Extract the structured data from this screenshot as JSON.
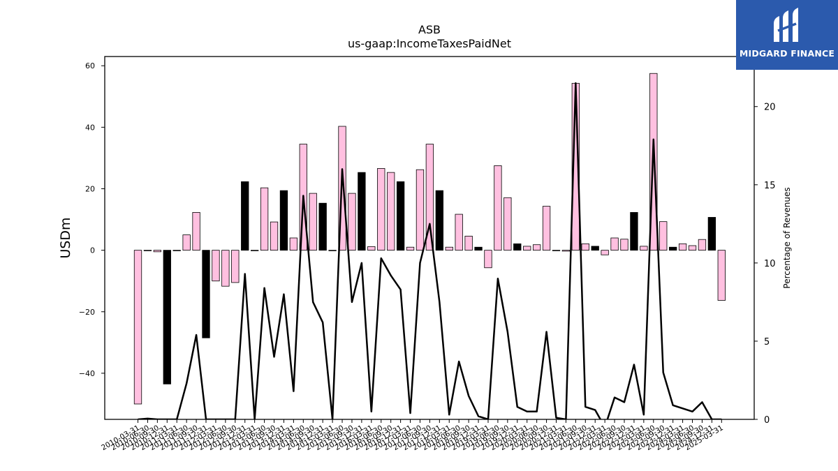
{
  "chart_data": {
    "type": "bar",
    "title": "ASB",
    "subtitle": "us-gaap:IncomeTaxesPaidNet",
    "ylabel": "USDm",
    "y2label": "Percentage of Revenues",
    "ylim": [
      -55,
      63
    ],
    "y2lim": [
      0,
      23.2
    ],
    "yticks": [
      -40,
      -20,
      0,
      20,
      40,
      60
    ],
    "y2ticks": [
      0,
      5,
      10,
      15,
      20
    ],
    "xtick_labels": [
      "2010-03-31",
      "2010-06-30",
      "2010-09-30",
      "2010-12-31",
      "2011-03-31",
      "2011-06-30",
      "2011-09-30",
      "2011-12-31",
      "2012-03-31",
      "2012-06-30",
      "2012-09-30",
      "2012-12-31",
      "2013-03-31",
      "2013-06-30",
      "2013-09-30",
      "2013-12-31",
      "2014-03-31",
      "2014-06-30",
      "2014-09-30",
      "2014-12-31",
      "2015-03-31",
      "2015-06-30",
      "2015-09-30",
      "2015-12-31",
      "2016-03-31",
      "2016-06-30",
      "2016-09-30",
      "2016-12-31",
      "2017-03-31",
      "2017-06-30",
      "2017-09-30",
      "2017-12-31",
      "2018-03-31",
      "2018-06-30",
      "2018-09-30",
      "2018-12-31",
      "2019-03-31",
      "2019-06-30",
      "2019-09-30",
      "2019-12-31",
      "2020-03-31",
      "2020-06-30",
      "2020-09-30",
      "2020-12-31",
      "2021-03-31",
      "2021-06-30",
      "2021-09-30",
      "2021-12-31",
      "2022-03-31",
      "2022-06-30",
      "2022-09-30",
      "2022-12-31",
      "2023-03-31",
      "2023-06-30",
      "2023-09-30",
      "2023-12-31",
      "2024-03-31",
      "2024-06-30",
      "2024-09-30",
      "2024-12-31",
      "2025-03-31"
    ],
    "series": [
      {
        "kind": "bar",
        "values": [
          -50,
          0,
          -0.5,
          -43.5,
          0,
          5,
          12.3,
          -28.5,
          -10,
          -11.7,
          -10.5,
          22.3,
          0,
          20.3,
          9.2,
          19.4,
          4,
          34.5,
          18.5,
          15.3,
          0,
          40.3,
          18.5,
          25.3,
          1.2,
          26.6,
          25.3,
          22.3,
          1,
          26.2,
          34.5,
          19.4,
          1,
          11.7,
          4.6,
          1,
          -5.7,
          27.5,
          17.1,
          2.1,
          1.3,
          1.8,
          14.3,
          0,
          -0.3,
          54.3,
          2.1,
          1.3,
          -1.5,
          4,
          3.6,
          12.3,
          1.3,
          57.5,
          9.3,
          1,
          2.1,
          1.5,
          3.5,
          10.7,
          -16.3
        ],
        "colors": [
          "#ffc0e0",
          "#ffc0e0",
          "#ffc0e0",
          "#000000",
          "#ffc0e0",
          "#ffc0e0",
          "#ffc0e0",
          "#000000",
          "#ffc0e0",
          "#ffc0e0",
          "#ffc0e0",
          "#000000",
          "#ffc0e0",
          "#ffc0e0",
          "#ffc0e0",
          "#000000",
          "#ffc0e0",
          "#ffc0e0",
          "#ffc0e0",
          "#000000",
          "#ffc0e0",
          "#ffc0e0",
          "#ffc0e0",
          "#000000",
          "#ffc0e0",
          "#ffc0e0",
          "#ffc0e0",
          "#000000",
          "#ffc0e0",
          "#ffc0e0",
          "#ffc0e0",
          "#000000",
          "#ffc0e0",
          "#ffc0e0",
          "#ffc0e0",
          "#000000",
          "#ffc0e0",
          "#ffc0e0",
          "#ffc0e0",
          "#000000",
          "#ffc0e0",
          "#ffc0e0",
          "#ffc0e0",
          "#000000",
          "#ffc0e0",
          "#ffc0e0",
          "#ffc0e0",
          "#000000",
          "#ffc0e0",
          "#ffc0e0",
          "#ffc0e0",
          "#000000",
          "#ffc0e0",
          "#ffc0e0",
          "#ffc0e0",
          "#000000",
          "#ffc0e0",
          "#ffc0e0",
          "#ffc0e0",
          "#000000",
          "#ffc0e0"
        ]
      },
      {
        "kind": "line",
        "axis": "right",
        "color": "#000000",
        "values": [
          0,
          0.05,
          0,
          0,
          0,
          2.3,
          5.4,
          0,
          0,
          0,
          0,
          9.3,
          0,
          8.4,
          4,
          8,
          1.8,
          14.3,
          7.5,
          6.2,
          0,
          16,
          7.5,
          10,
          0.5,
          10.3,
          9.2,
          8.3,
          0.4,
          10,
          12.5,
          7.5,
          0.3,
          3.7,
          1.5,
          0.2,
          0,
          9,
          5.6,
          0.8,
          0.5,
          0.5,
          5.6,
          0.1,
          0,
          21.5,
          0.8,
          0.6,
          -0.5,
          1.4,
          1.1,
          3.5,
          0.3,
          17.9,
          3,
          0.9,
          0.7,
          0.5,
          1.1,
          0,
          0
        ]
      }
    ]
  },
  "logo": {
    "text": "MIDGARD FINANCE",
    "bg": "#2b5aad"
  }
}
